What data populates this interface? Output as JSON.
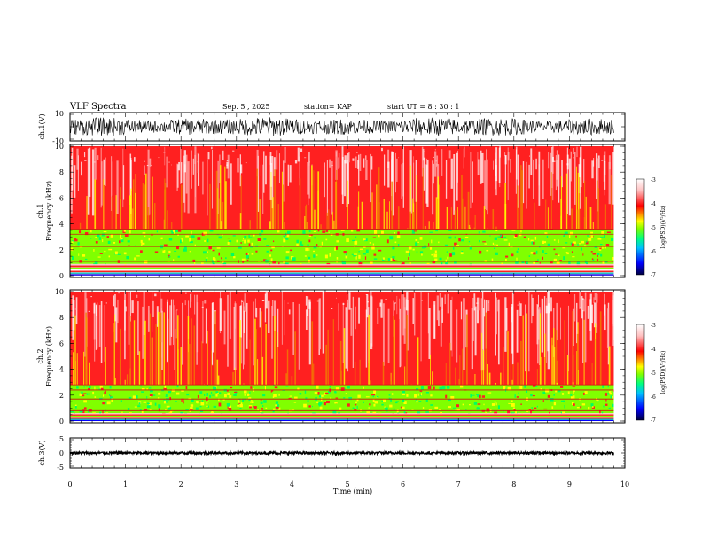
{
  "header": {
    "title": "VLF Spectra",
    "date": "Sep. 5  , 2025",
    "station": "station= KAP",
    "start": "start  UT  =   8  : 30 : 1"
  },
  "colors": {
    "spectrogram_bands": [
      "#ffffff",
      "#ffc8c8",
      "#ff2020",
      "#f08000",
      "#ffff00",
      "#80ff00",
      "#00ff60",
      "#00c0c0",
      "#0000ff"
    ],
    "colorbar_stops": [
      "#000040",
      "#0000ff",
      "#00c0ff",
      "#00ff80",
      "#80ff00",
      "#ffff00",
      "#ff8000",
      "#ff0000",
      "#ffc0c0",
      "#ffffff"
    ]
  },
  "chart_data": [
    {
      "type": "line",
      "name": "ch1-waveform",
      "ylabel": "ch.1(V)",
      "ylim": [
        -10,
        10
      ],
      "ytick_labels": [
        "10",
        "-10"
      ],
      "xlim": [
        0,
        10
      ],
      "signal_range_approx": [
        -8,
        8
      ]
    },
    {
      "type": "heatmap",
      "name": "ch1-spectrogram",
      "ylabel": "ch.1\nFrequency  (kHz)",
      "ylim": [
        0,
        10
      ],
      "yticks": [
        0,
        2,
        4,
        6,
        8,
        10
      ],
      "xlim": [
        0,
        10
      ],
      "colorbar": {
        "label": "log(PSD)(V²/Hz)",
        "range": [
          -7,
          -3
        ],
        "ticks": [
          "-3",
          "-4",
          "-5",
          "-6",
          "-7"
        ]
      },
      "bands_kHz": [
        {
          "from": 0,
          "to": 0.9,
          "level": "mixed blue/green/red lines"
        },
        {
          "from": 0.9,
          "to": 3.6,
          "level": "-5 (green/yellow)"
        },
        {
          "from": 3.6,
          "to": 6,
          "level": "-4 (red)"
        },
        {
          "from": 6,
          "to": 10,
          "level": "-3.5 (red/white speckle)"
        }
      ]
    },
    {
      "type": "heatmap",
      "name": "ch2-spectrogram",
      "ylabel": "ch.2\nFrequency  (kHz)",
      "ylim": [
        0,
        10
      ],
      "yticks": [
        0,
        2,
        4,
        6,
        8,
        10
      ],
      "xlim": [
        0,
        10
      ],
      "colorbar": {
        "label": "log(PSD)(V²/Hz)",
        "range": [
          -7,
          -3
        ],
        "ticks": [
          "-3",
          "-4",
          "-5",
          "-6",
          "-7"
        ]
      },
      "bands_kHz": [
        {
          "from": 0,
          "to": 0.6,
          "level": "mixed blue/green/red lines"
        },
        {
          "from": 0.6,
          "to": 2.8,
          "level": "-5 (green/cyan)"
        },
        {
          "from": 2.8,
          "to": 10,
          "level": "-4 (red)"
        }
      ]
    },
    {
      "type": "line",
      "name": "ch3-waveform",
      "ylabel": "ch.3(V)",
      "ylim": [
        -5,
        5
      ],
      "ytick_labels": [
        "5",
        "0",
        "-5"
      ],
      "xlim": [
        0,
        10
      ],
      "signal_range_approx": [
        -0.5,
        0.5
      ],
      "baseline": 0
    }
  ],
  "xaxis": {
    "label": "Time  (min)",
    "ticks": [
      "0",
      "1",
      "2",
      "3",
      "4",
      "5",
      "6",
      "7",
      "8",
      "9",
      "10"
    ],
    "range": [
      0,
      10
    ],
    "data_end": 9.8
  },
  "ch1_labels": {
    "channel": "ch.1",
    "freq": "Frequency  (kHz)"
  },
  "ch2_labels": {
    "channel": "ch.2",
    "freq": "Frequency  (kHz)"
  },
  "colorbar_label": "log(PSD)(V²/Hz)"
}
